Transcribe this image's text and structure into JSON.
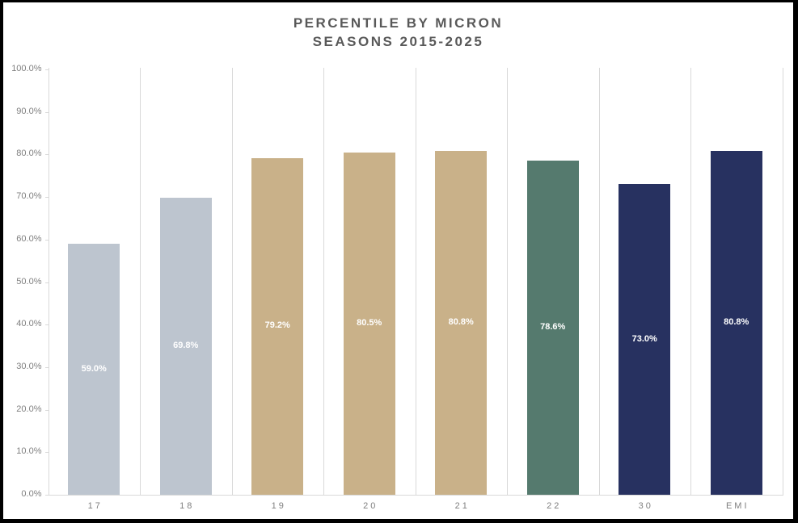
{
  "chart_data": {
    "type": "bar",
    "title": "PERCENTILE BY MICRON SEASONS 2015-2025",
    "title_lines": [
      "PERCENTILE BY MICRON",
      "SEASONS 2015-2025"
    ],
    "categories": [
      "17",
      "18",
      "19",
      "20",
      "21",
      "22",
      "30",
      "EMI"
    ],
    "values": [
      59.0,
      69.8,
      79.2,
      80.5,
      80.8,
      78.6,
      73.0,
      80.8
    ],
    "data_labels": [
      "59.0%",
      "69.8%",
      "79.2%",
      "80.5%",
      "80.8%",
      "78.6%",
      "73.0%",
      "80.8%"
    ],
    "bar_colors": [
      "#bdc5cf",
      "#bdc5cf",
      "#c9b189",
      "#c9b189",
      "#c9b189",
      "#557a6e",
      "#273160",
      "#273160"
    ],
    "y_tick_values": [
      0,
      10,
      20,
      30,
      40,
      50,
      60,
      70,
      80,
      90,
      100
    ],
    "y_tick_labels": [
      "0.0%",
      "10.0%",
      "20.0%",
      "30.0%",
      "40.0%",
      "50.0%",
      "60.0%",
      "70.0%",
      "80.0%",
      "90.0%",
      "100.0%"
    ],
    "ylim": [
      0,
      100
    ],
    "grid": "vertical-column-separators-only",
    "legend": "none",
    "colors": {
      "title_text": "#595959",
      "axis_text": "#7f7f7f",
      "gridline": "#d9d9d9",
      "bar_label_text": "#ffffff",
      "frame": "#000000",
      "background": "#ffffff"
    }
  }
}
